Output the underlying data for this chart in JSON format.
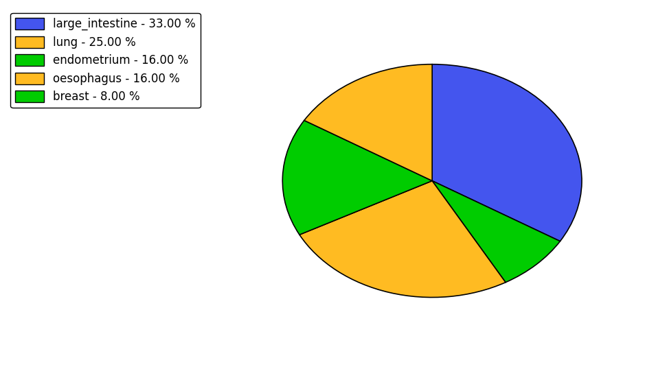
{
  "labels": [
    "large_intestine",
    "breast",
    "lung",
    "endometrium",
    "oesophagus"
  ],
  "values": [
    33.0,
    8.0,
    25.0,
    16.0,
    16.0
  ],
  "colors": [
    "#4455ee",
    "#00cc00",
    "#ffbb22",
    "#00cc00",
    "#ffbb22"
  ],
  "legend_labels": [
    "large_intestine - 33.00 %",
    "lung - 25.00 %",
    "endometrium - 16.00 %",
    "oesophagus - 16.00 %",
    "breast - 8.00 %"
  ],
  "legend_colors": [
    "#4455ee",
    "#ffbb22",
    "#00cc00",
    "#ffbb22",
    "#00cc00"
  ],
  "startangle": 90,
  "figsize": [
    9.39,
    5.38
  ],
  "dpi": 100
}
